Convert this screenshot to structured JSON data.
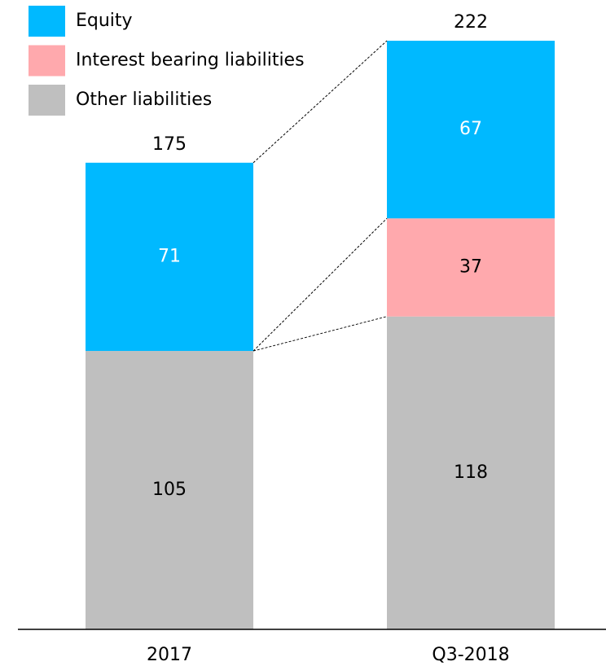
{
  "chart_data": {
    "type": "stacked_bar",
    "categories": [
      "2017",
      "Q3-2018"
    ],
    "series": [
      {
        "name": "Other liabilities",
        "color": "#bfbfbf",
        "label_color": "#000000",
        "values": [
          105,
          118
        ]
      },
      {
        "name": "Interest bearing liabilities",
        "color": "#ffa9ad",
        "label_color": "#000000",
        "values": [
          null,
          37
        ]
      },
      {
        "name": "Equity",
        "color": "#00b9ff",
        "label_color": "#ffffff",
        "values": [
          71,
          67
        ]
      }
    ],
    "totals": [
      175,
      222
    ],
    "ylim": [
      0,
      230
    ]
  }
}
